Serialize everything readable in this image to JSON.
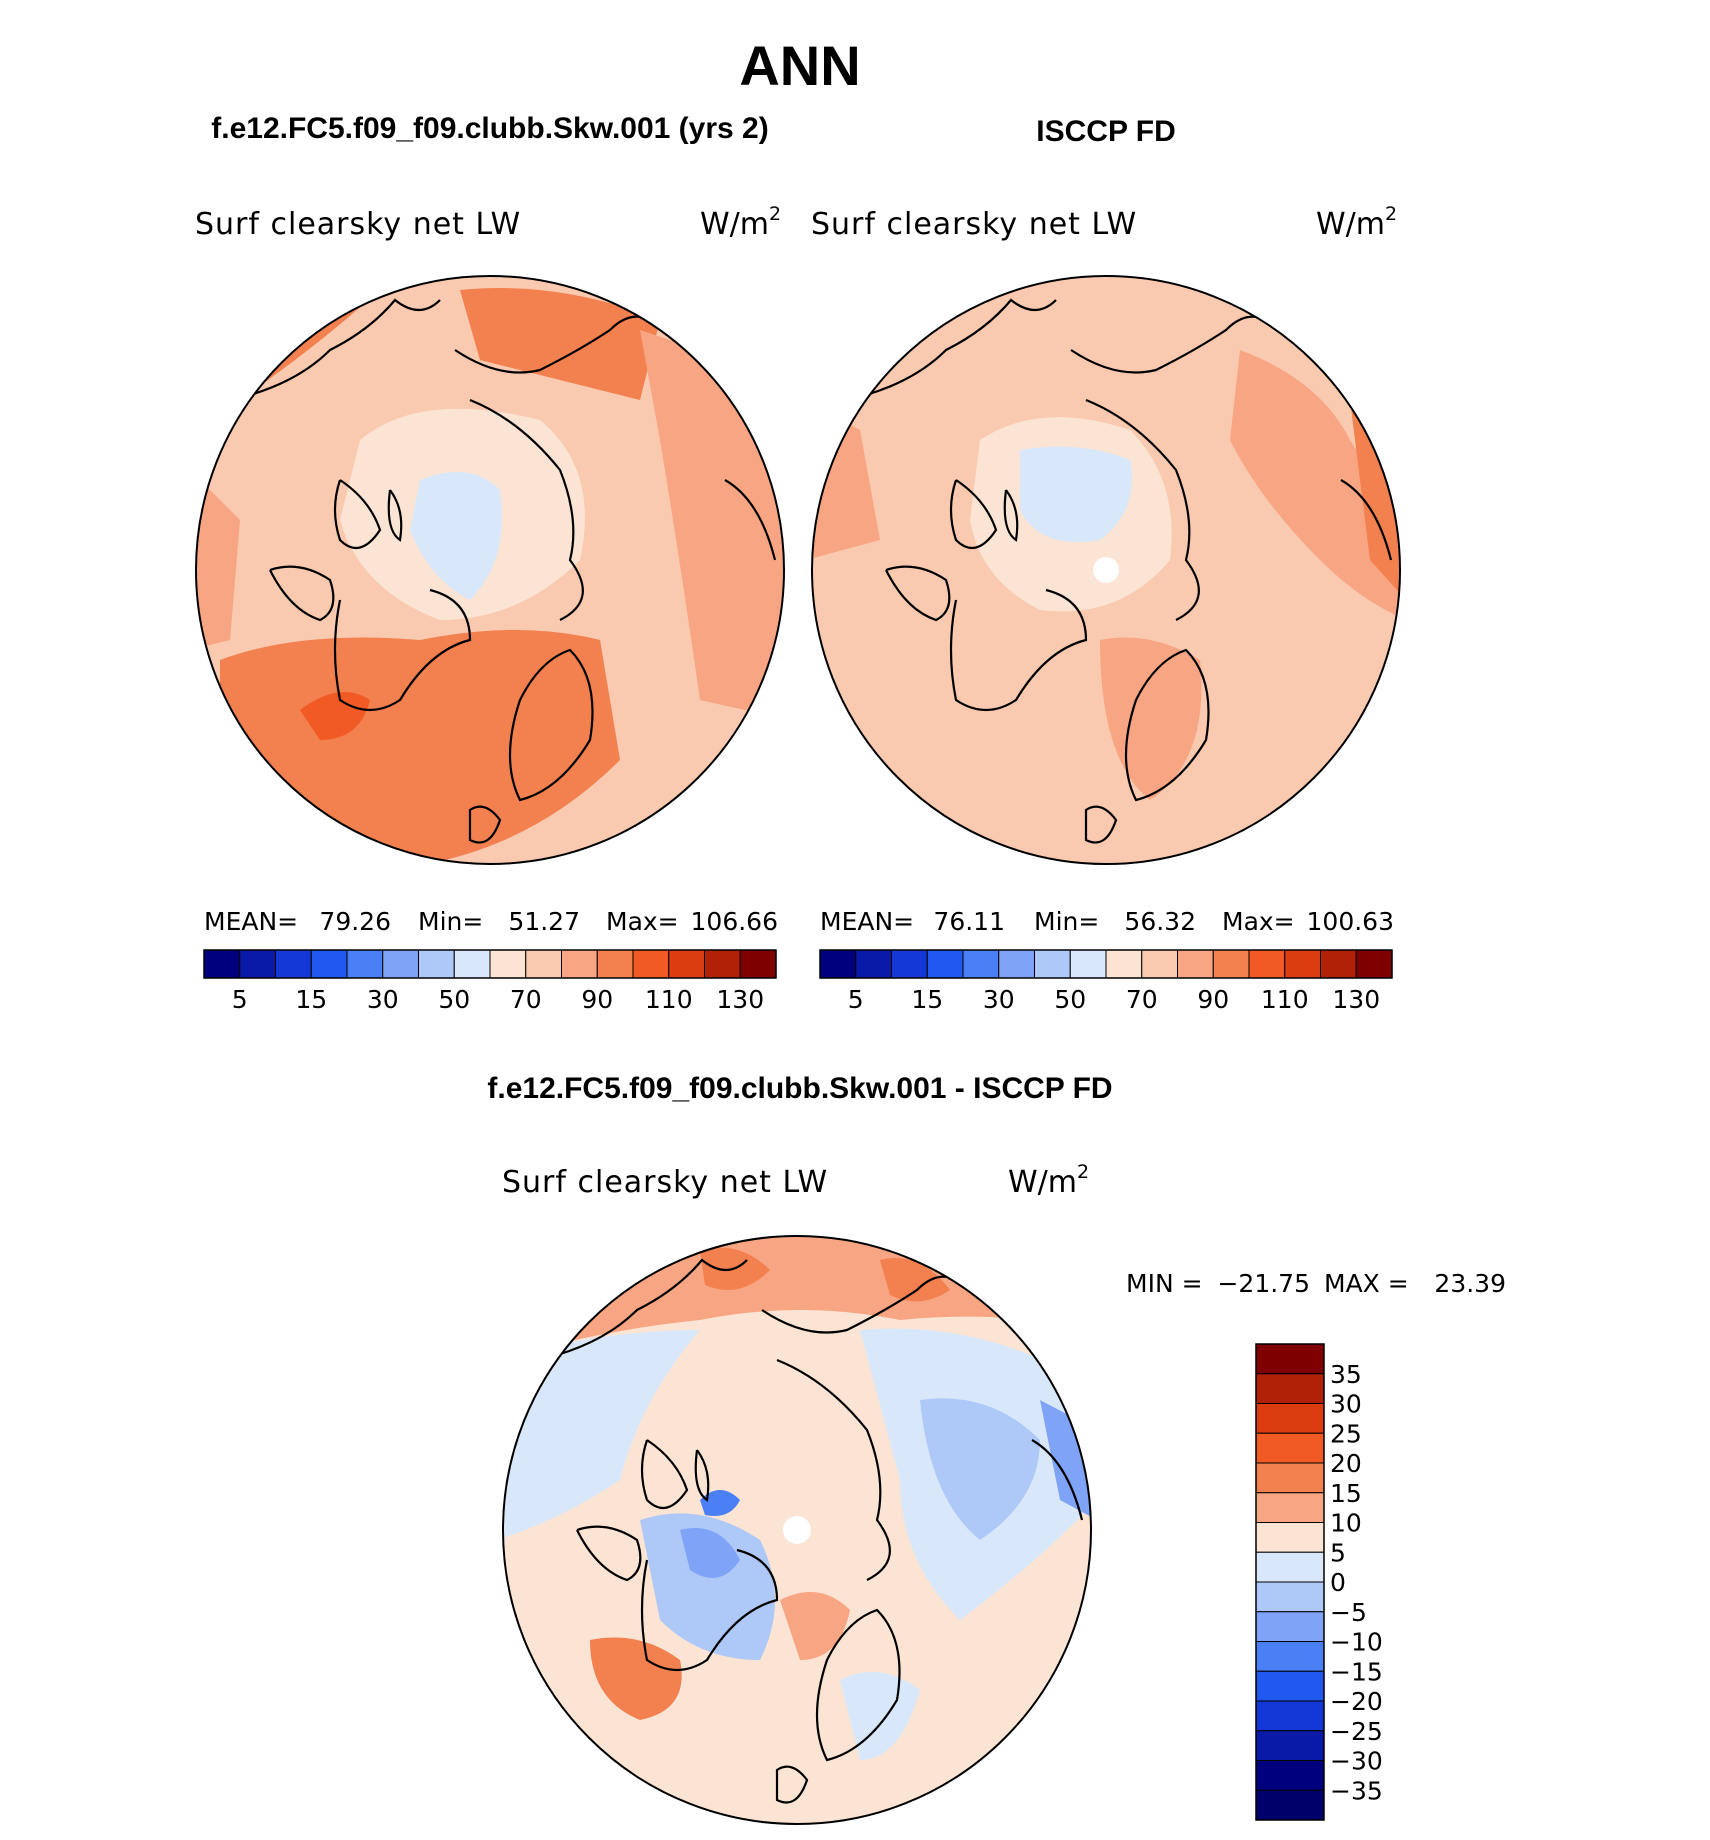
{
  "figure": {
    "season": "ANN",
    "top_left_title": "f.e12.FC5.f09_f09.clubb.Skw.001 (yrs 2)",
    "top_right_title": "ISCCP FD",
    "diff_title": "f.e12.FC5.f09_f09.clubb.Skw.001 - ISCCP FD"
  },
  "panels": [
    {
      "id": "model",
      "variable": "Surf clearsky net LW",
      "units": "W/m",
      "units_sup": "2",
      "stats": {
        "mean_label": "MEAN=",
        "mean": "79.26",
        "min_label": "Min=",
        "min": "51.27",
        "max_label": "Max=",
        "max": "106.66"
      }
    },
    {
      "id": "obs",
      "variable": "Surf clearsky net LW",
      "units": "W/m",
      "units_sup": "2",
      "stats": {
        "mean_label": "MEAN=",
        "mean": "76.11",
        "min_label": "Min=",
        "min": "56.32",
        "max_label": "Max=",
        "max": "100.63"
      }
    },
    {
      "id": "diff",
      "variable": "Surf clearsky net LW",
      "units": "W/m",
      "units_sup": "2",
      "stats": {
        "min_label": "MIN =",
        "min": "−21.75",
        "max_label": "MAX =",
        "max": "23.39"
      }
    }
  ],
  "chart_data": [
    {
      "type": "heatmap",
      "title": "f.e12.FC5.f09_f09.clubb.Skw.001 (yrs 2)",
      "subtitle": "Surf clearsky net LW",
      "units": "W/m2",
      "projection": "north polar stereographic",
      "mean": 79.26,
      "min": 51.27,
      "max": 106.66,
      "colorbar_ticks": [
        5,
        15,
        30,
        50,
        70,
        90,
        110,
        130
      ],
      "colorbar_colors": [
        "#00007f",
        "#0a1aa8",
        "#1338d6",
        "#2158f0",
        "#4a7ff5",
        "#7fa3f7",
        "#aec8f8",
        "#d8e8fa",
        "#fbe4d4",
        "#f9c9b0",
        "#f7a582",
        "#f3804f",
        "#f15a24",
        "#db3d10",
        "#b02108",
        "#7f0000"
      ]
    },
    {
      "type": "heatmap",
      "title": "ISCCP FD",
      "subtitle": "Surf clearsky net LW",
      "units": "W/m2",
      "projection": "north polar stereographic",
      "mean": 76.11,
      "min": 56.32,
      "max": 100.63,
      "colorbar_ticks": [
        5,
        15,
        30,
        50,
        70,
        90,
        110,
        130
      ],
      "colorbar_colors": [
        "#00007f",
        "#0a1aa8",
        "#1338d6",
        "#2158f0",
        "#4a7ff5",
        "#7fa3f7",
        "#aec8f8",
        "#d8e8fa",
        "#fbe4d4",
        "#f9c9b0",
        "#f7a582",
        "#f3804f",
        "#f15a24",
        "#db3d10",
        "#b02108",
        "#7f0000"
      ]
    },
    {
      "type": "heatmap",
      "title": "f.e12.FC5.f09_f09.clubb.Skw.001 - ISCCP FD",
      "subtitle": "Surf clearsky net LW",
      "units": "W/m2",
      "projection": "north polar stereographic",
      "min": -21.75,
      "max": 23.39,
      "colorbar_ticks": [
        "35",
        "30",
        "25",
        "20",
        "15",
        "10",
        "5",
        "0",
        "−5",
        "−10",
        "−15",
        "−20",
        "−25",
        "−30",
        "−35"
      ],
      "colorbar_colors": [
        "#7f0000",
        "#b02108",
        "#db3d10",
        "#f15a24",
        "#f3804f",
        "#f7a582",
        "#fbe4d4",
        "#d8e8fa",
        "#aec8f8",
        "#7fa3f7",
        "#4a7ff5",
        "#2158f0",
        "#1338d6",
        "#0a1aa8",
        "#00007f",
        "#00006a"
      ]
    }
  ]
}
